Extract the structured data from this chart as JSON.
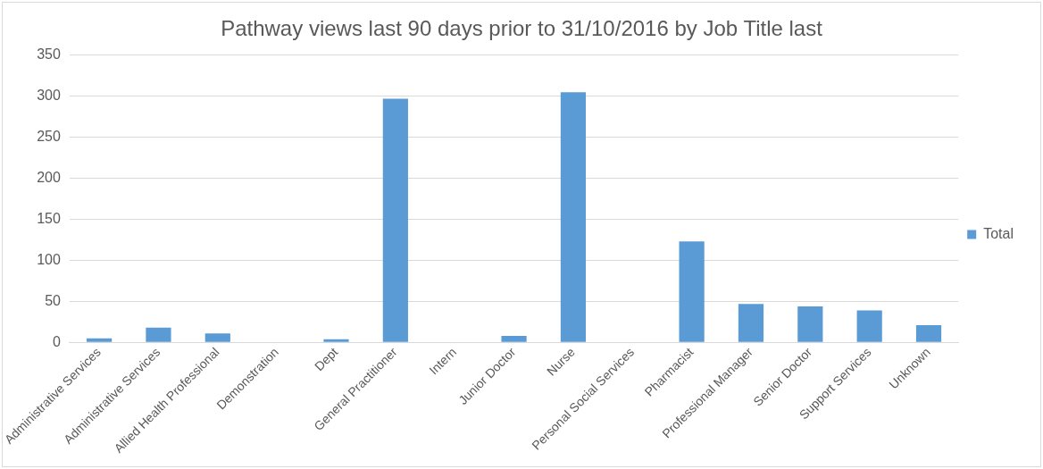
{
  "chart_data": {
    "type": "bar",
    "title": "Pathway views last 90 days prior to 31/10/2016 by Job Title last",
    "categories": [
      "Administrative Services",
      "Administrative Services",
      "Allied Health Professional",
      "Demonstration",
      "Dept",
      "General Practitioner",
      "Intern",
      "Junior Doctor",
      "Nurse",
      "Personal Social Services",
      "Pharmacist",
      "Professional Manager",
      "Senior Doctor",
      "Support Services",
      "Unknown"
    ],
    "series": [
      {
        "name": "Total",
        "color": "#5b9bd5",
        "values": [
          5,
          18,
          11,
          0,
          4,
          297,
          0,
          8,
          305,
          0,
          123,
          47,
          44,
          39,
          21
        ]
      }
    ],
    "ylim": [
      0,
      350
    ],
    "yticks": [
      0,
      50,
      100,
      150,
      200,
      250,
      300,
      350
    ],
    "grid": "y",
    "legend": "right"
  }
}
